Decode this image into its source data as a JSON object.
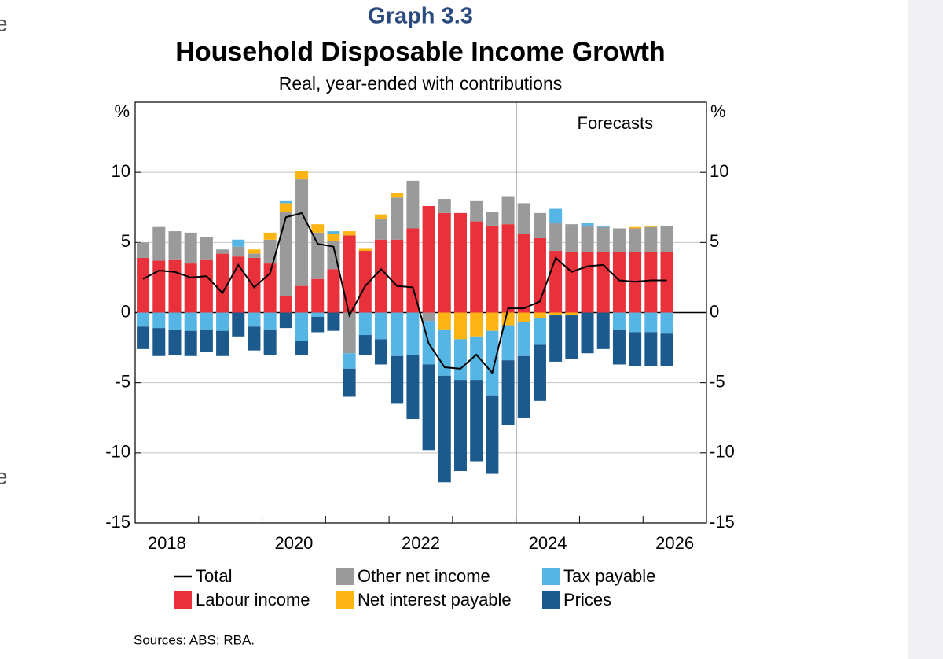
{
  "page": {
    "margin_fragments": [
      "e",
      "e"
    ],
    "sources": "Sources: ABS; RBA."
  },
  "chart_data": {
    "type": "bar",
    "graph_label": "Graph 3.3",
    "title": "Household Disposable Income Growth",
    "subtitle": "Real, year-ended with contributions",
    "y_unit": "%",
    "y2_unit": "%",
    "xlim": [
      2018,
      2027
    ],
    "xticks": [
      2019,
      2020,
      2021,
      2022,
      2023,
      2024,
      2025,
      2026
    ],
    "xlabels": [
      {
        "value": 2018.5,
        "label": "2018"
      },
      {
        "value": 2020.5,
        "label": "2020"
      },
      {
        "value": 2022.5,
        "label": "2022"
      },
      {
        "value": 2024.5,
        "label": "2024"
      },
      {
        "value": 2026.5,
        "label": "2026"
      }
    ],
    "ylim": [
      -15,
      15
    ],
    "yticks": [
      -15,
      -10,
      -5,
      0,
      5,
      10
    ],
    "y2lim": [
      -15,
      15
    ],
    "y2ticks": [
      -15,
      -10,
      -5,
      0,
      5,
      10
    ],
    "grid": true,
    "forecast_start": 2024,
    "forecast_label": "Forecasts",
    "x": [
      2018.125,
      2018.375,
      2018.625,
      2018.875,
      2019.125,
      2019.375,
      2019.625,
      2019.875,
      2020.125,
      2020.375,
      2020.625,
      2020.875,
      2021.125,
      2021.375,
      2021.625,
      2021.875,
      2022.125,
      2022.375,
      2022.625,
      2022.875,
      2023.125,
      2023.375,
      2023.625,
      2023.875,
      2024.125,
      2024.375,
      2024.625,
      2024.875,
      2025.125,
      2025.375,
      2025.625,
      2025.875,
      2026.125,
      2026.375
    ],
    "series": [
      {
        "name": "Total",
        "type": "line",
        "color": "#000000",
        "values": [
          2.4,
          3.0,
          2.9,
          2.5,
          2.6,
          1.4,
          3.4,
          1.8,
          2.8,
          6.8,
          7.1,
          4.9,
          4.7,
          -0.2,
          1.9,
          3.1,
          1.9,
          1.8,
          -2.2,
          -3.9,
          -4.0,
          -3.0,
          -4.3,
          0.3,
          0.3,
          0.8,
          3.9,
          2.9,
          3.3,
          3.4,
          2.3,
          2.2,
          2.3,
          2.3
        ]
      },
      {
        "name": "Labour income",
        "color": "#e8313a",
        "values": [
          3.9,
          3.7,
          3.8,
          3.5,
          3.8,
          4.2,
          4.0,
          3.9,
          3.5,
          1.2,
          1.9,
          2.4,
          3.1,
          5.5,
          4.4,
          5.2,
          5.2,
          6.0,
          7.6,
          7.1,
          7.1,
          6.5,
          6.2,
          6.3,
          5.6,
          5.3,
          4.4,
          4.3,
          4.3,
          4.3,
          4.3,
          4.3,
          4.3,
          4.3
        ]
      },
      {
        "name": "Other net income",
        "color": "#9a9a9a",
        "values": [
          1.1,
          2.4,
          2.0,
          2.2,
          1.6,
          0.3,
          0.7,
          0.3,
          1.7,
          6.0,
          7.6,
          3.3,
          2.0,
          -2.9,
          0,
          1.5,
          3.0,
          3.4,
          -0.6,
          1.0,
          0,
          1.5,
          1.0,
          2.0,
          2.2,
          1.8,
          2.0,
          2.0,
          1.9,
          1.8,
          1.7,
          1.7,
          1.8,
          1.9
        ]
      },
      {
        "name": "Net interest payable",
        "color": "#fdb515",
        "values": [
          0,
          0,
          0,
          0,
          0,
          0,
          0,
          0.3,
          0.5,
          0.6,
          0.6,
          0.6,
          0.5,
          0.3,
          0.2,
          0.3,
          0.3,
          0,
          0,
          -1.2,
          -1.9,
          -1.7,
          -1.3,
          -0.9,
          -0.7,
          -0.4,
          -0.2,
          -0.2,
          0,
          0,
          0,
          0.1,
          0.1,
          0
        ]
      },
      {
        "name": "Tax payable",
        "color": "#55b5e5",
        "values": [
          -1.0,
          -1.1,
          -1.2,
          -1.3,
          -1.2,
          -1.3,
          0.5,
          -1.0,
          -1.2,
          0.2,
          -2.0,
          -0.3,
          0.2,
          -1.1,
          -1.6,
          -1.9,
          -3.1,
          -3.0,
          -3.1,
          -3.3,
          -2.9,
          -3.1,
          -4.6,
          -2.5,
          -2.4,
          -1.9,
          1.0,
          0,
          0.2,
          0.1,
          -1.2,
          -1.4,
          -1.4,
          -1.5
        ]
      },
      {
        "name": "Prices",
        "color": "#1c5a8d",
        "values": [
          -1.6,
          -2.0,
          -1.8,
          -1.8,
          -1.6,
          -1.8,
          -1.7,
          -1.7,
          -1.8,
          -1.1,
          -1.0,
          -1.1,
          -1.3,
          -2.0,
          -1.4,
          -1.8,
          -3.4,
          -4.6,
          -6.1,
          -7.6,
          -6.5,
          -5.8,
          -5.6,
          -4.6,
          -4.4,
          -4.0,
          -3.3,
          -3.1,
          -2.9,
          -2.6,
          -2.5,
          -2.4,
          -2.4,
          -2.3
        ]
      }
    ]
  }
}
